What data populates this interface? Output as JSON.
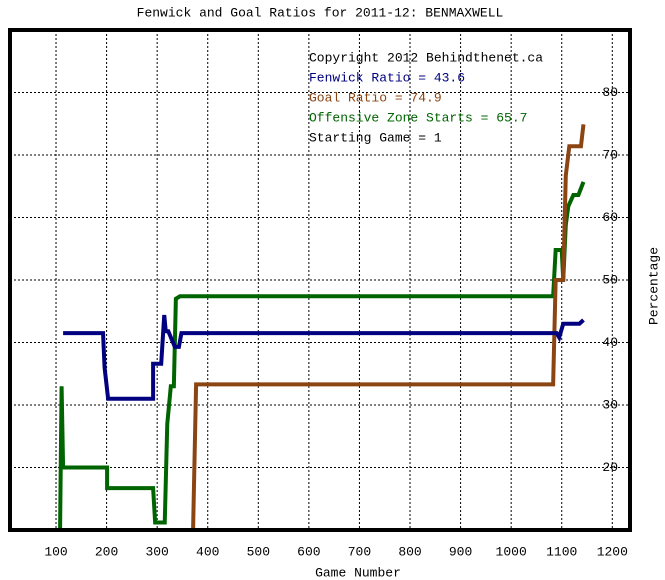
{
  "chart_data": {
    "type": "line",
    "title": "Fenwick and Goal Ratios for 2011-12: BENMAXWELL",
    "x_label": "Game Number",
    "y_label": "Percentage",
    "xlim": [
      9,
      1235
    ],
    "ylim": [
      10,
      90
    ],
    "xticks": [
      100,
      200,
      300,
      400,
      500,
      600,
      700,
      800,
      900,
      1000,
      1100,
      1200
    ],
    "yticks": [
      20,
      30,
      40,
      50,
      60,
      70,
      80
    ],
    "grid": true,
    "annotations": [
      {
        "text": "Copyright 2012 Behindthenet.ca",
        "color": "#000000"
      },
      {
        "text": "Fenwick Ratio = 43.6",
        "color": "#000080"
      },
      {
        "text": "Goal Ratio = 74.9",
        "color": "#8b4513"
      },
      {
        "text": "Offensive Zone Starts = 65.7",
        "color": "#006400"
      },
      {
        "text": "Starting Game = 1",
        "color": "#000000"
      }
    ],
    "series": [
      {
        "color": "#006400",
        "x": [
          108,
          111,
          114,
          201,
          201,
          292,
          296,
          315,
          320,
          327,
          333,
          337,
          345,
          1083,
          1088,
          1100,
          1103,
          1108,
          1113,
          1123,
          1133,
          1143
        ],
        "values": [
          10,
          33,
          20,
          20,
          16.7,
          16.7,
          11.2,
          11.2,
          27,
          33,
          33,
          47,
          47.4,
          47.4,
          54.8,
          54.8,
          50,
          58.8,
          61.8,
          63.6,
          63.6,
          65.7
        ]
      },
      {
        "color": "#8b4513",
        "x": [
          371,
          377,
          1083,
          1088,
          1103,
          1108,
          1115,
          1138,
          1143
        ],
        "values": [
          10,
          33.3,
          33.3,
          50,
          50,
          66.7,
          71.4,
          71.4,
          74.9
        ]
      },
      {
        "color": "#000080",
        "x": [
          114,
          193,
          196,
          203,
          292,
          292,
          308,
          314,
          317,
          322,
          335,
          343,
          348,
          1090,
          1095,
          1103,
          1135,
          1143
        ],
        "values": [
          41.5,
          41.5,
          36,
          31,
          31,
          36.6,
          36.6,
          44.4,
          41.8,
          41.8,
          39.3,
          39.3,
          41.5,
          41.5,
          40.8,
          43,
          43,
          43.6
        ]
      }
    ]
  }
}
